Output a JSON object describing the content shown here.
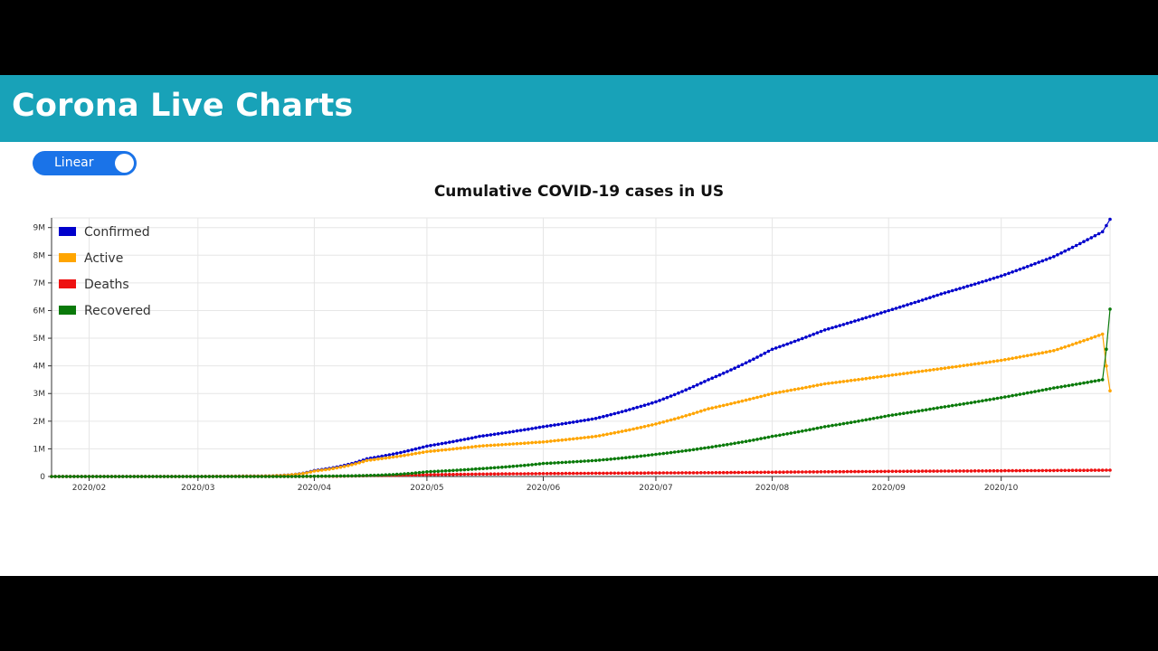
{
  "app": {
    "title": "Corona Live Charts"
  },
  "scale_toggle": {
    "label": "Linear",
    "on": true
  },
  "colors": {
    "header": "#18a2b8",
    "toggle": "#1a73e8"
  },
  "chart_data": {
    "type": "line",
    "title": "Cumulative COVID-19 cases in US",
    "xlabel": "",
    "ylabel": "",
    "x_start": "2020-01-22",
    "x_end": "2020-10-30",
    "x_ticks": [
      "2020/02",
      "2020/03",
      "2020/04",
      "2020/05",
      "2020/06",
      "2020/07",
      "2020/08",
      "2020/09",
      "2020/10"
    ],
    "x_tick_dates": [
      "2020-02-01",
      "2020-03-01",
      "2020-04-01",
      "2020-05-01",
      "2020-06-01",
      "2020-07-01",
      "2020-08-01",
      "2020-09-01",
      "2020-10-01"
    ],
    "y_ticks": [
      "0",
      "1M",
      "2M",
      "3M",
      "4M",
      "5M",
      "6M",
      "7M",
      "8M",
      "9M"
    ],
    "ylim": [
      0,
      9350000
    ],
    "grid": true,
    "legend_position": "top-left",
    "series": [
      {
        "name": "Confirmed",
        "color": "#0000cc",
        "points": [
          [
            "2020-01-22",
            1
          ],
          [
            "2020-03-01",
            75
          ],
          [
            "2020-03-20",
            20000
          ],
          [
            "2020-04-01",
            215000
          ],
          [
            "2020-04-15",
            640000
          ],
          [
            "2020-05-01",
            1100000
          ],
          [
            "2020-05-15",
            1450000
          ],
          [
            "2020-06-01",
            1800000
          ],
          [
            "2020-06-15",
            2100000
          ],
          [
            "2020-07-01",
            2700000
          ],
          [
            "2020-07-15",
            3500000
          ],
          [
            "2020-08-01",
            4600000
          ],
          [
            "2020-08-15",
            5300000
          ],
          [
            "2020-09-01",
            6000000
          ],
          [
            "2020-09-15",
            6600000
          ],
          [
            "2020-10-01",
            7250000
          ],
          [
            "2020-10-15",
            7950000
          ],
          [
            "2020-10-28",
            8850000
          ],
          [
            "2020-10-30",
            9300000
          ]
        ]
      },
      {
        "name": "Active",
        "color": "#ffa500",
        "points": [
          [
            "2020-01-22",
            1
          ],
          [
            "2020-03-01",
            60
          ],
          [
            "2020-03-20",
            19000
          ],
          [
            "2020-04-01",
            195000
          ],
          [
            "2020-04-15",
            580000
          ],
          [
            "2020-05-01",
            900000
          ],
          [
            "2020-05-15",
            1100000
          ],
          [
            "2020-06-01",
            1250000
          ],
          [
            "2020-06-15",
            1450000
          ],
          [
            "2020-07-01",
            1900000
          ],
          [
            "2020-07-15",
            2450000
          ],
          [
            "2020-08-01",
            3000000
          ],
          [
            "2020-08-15",
            3350000
          ],
          [
            "2020-09-01",
            3650000
          ],
          [
            "2020-09-15",
            3900000
          ],
          [
            "2020-10-01",
            4200000
          ],
          [
            "2020-10-15",
            4550000
          ],
          [
            "2020-10-28",
            5150000
          ],
          [
            "2020-10-30",
            3100000
          ]
        ]
      },
      {
        "name": "Deaths",
        "color": "#ee1111",
        "points": [
          [
            "2020-01-22",
            0
          ],
          [
            "2020-03-01",
            1
          ],
          [
            "2020-03-20",
            250
          ],
          [
            "2020-04-01",
            5000
          ],
          [
            "2020-04-15",
            30000
          ],
          [
            "2020-05-01",
            65000
          ],
          [
            "2020-05-15",
            88000
          ],
          [
            "2020-06-01",
            105000
          ],
          [
            "2020-06-15",
            117000
          ],
          [
            "2020-07-01",
            128000
          ],
          [
            "2020-07-15",
            137000
          ],
          [
            "2020-08-01",
            155000
          ],
          [
            "2020-08-15",
            170000
          ],
          [
            "2020-09-01",
            185000
          ],
          [
            "2020-09-15",
            195000
          ],
          [
            "2020-10-01",
            207000
          ],
          [
            "2020-10-15",
            217000
          ],
          [
            "2020-10-28",
            227000
          ],
          [
            "2020-10-30",
            230000
          ]
        ]
      },
      {
        "name": "Recovered",
        "color": "#0a7a0a",
        "points": [
          [
            "2020-01-22",
            0
          ],
          [
            "2020-03-01",
            7
          ],
          [
            "2020-03-20",
            150
          ],
          [
            "2020-04-01",
            10000
          ],
          [
            "2020-04-15",
            35000
          ],
          [
            "2020-05-01",
            170000
          ],
          [
            "2020-05-15",
            280000
          ],
          [
            "2020-06-01",
            470000
          ],
          [
            "2020-06-15",
            580000
          ],
          [
            "2020-07-01",
            800000
          ],
          [
            "2020-07-15",
            1050000
          ],
          [
            "2020-08-01",
            1450000
          ],
          [
            "2020-08-15",
            1800000
          ],
          [
            "2020-09-01",
            2200000
          ],
          [
            "2020-09-15",
            2500000
          ],
          [
            "2020-10-01",
            2850000
          ],
          [
            "2020-10-15",
            3200000
          ],
          [
            "2020-10-28",
            3500000
          ],
          [
            "2020-10-30",
            6050000
          ]
        ]
      }
    ]
  }
}
